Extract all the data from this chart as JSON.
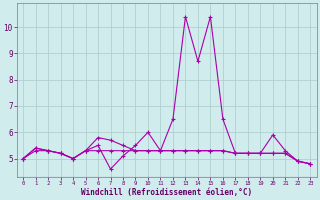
{
  "xlabel": "Windchill (Refroidissement éolien,°C)",
  "x": [
    0,
    1,
    2,
    3,
    4,
    5,
    6,
    7,
    8,
    9,
    10,
    11,
    12,
    13,
    14,
    15,
    16,
    17,
    18,
    19,
    20,
    21,
    22,
    23
  ],
  "line1": [
    5.0,
    5.4,
    5.3,
    5.2,
    5.0,
    5.3,
    5.5,
    4.6,
    5.1,
    5.5,
    6.0,
    5.3,
    6.5,
    10.4,
    8.7,
    10.4,
    6.5,
    5.2,
    5.2,
    5.2,
    5.9,
    5.3,
    4.9,
    4.8
  ],
  "line2": [
    5.0,
    5.4,
    5.3,
    5.2,
    5.0,
    5.3,
    5.8,
    5.7,
    5.5,
    5.3,
    5.3,
    5.3,
    5.3,
    5.3,
    5.3,
    5.3,
    5.3,
    5.2,
    5.2,
    5.2,
    5.2,
    5.2,
    4.9,
    4.8
  ],
  "line3": [
    5.0,
    5.3,
    5.3,
    5.2,
    5.0,
    5.3,
    5.3,
    5.3,
    5.3,
    5.3,
    5.3,
    5.3,
    5.3,
    5.3,
    5.3,
    5.3,
    5.3,
    5.2,
    5.2,
    5.2,
    5.2,
    5.2,
    4.9,
    4.8
  ],
  "line_color": "#aa00aa",
  "bg_color": "#d0ecec",
  "grid_color": "#aacccc",
  "ylim": [
    4.3,
    10.9
  ],
  "yticks": [
    5,
    6,
    7,
    8,
    9,
    10
  ],
  "xticks": [
    0,
    1,
    2,
    3,
    4,
    5,
    6,
    7,
    8,
    9,
    10,
    11,
    12,
    13,
    14,
    15,
    16,
    17,
    18,
    19,
    20,
    21,
    22,
    23
  ],
  "ylabel_color": "#660066",
  "tick_color": "#660066",
  "spine_color": "#9966aa"
}
